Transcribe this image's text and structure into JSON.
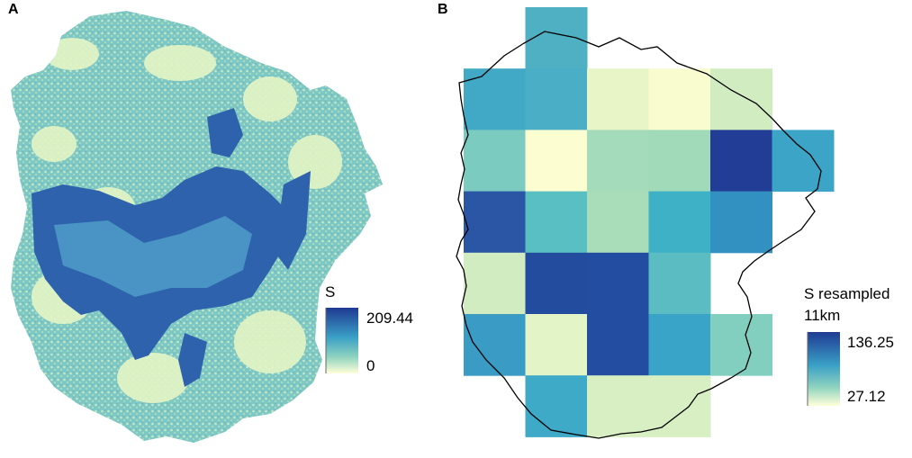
{
  "panels": {
    "a": {
      "label": "A",
      "legend_title": "S",
      "legend_max": "209.44",
      "legend_min": "0",
      "high_value_color": "#2c4fa8",
      "mid_value_color": "#5fb8c9",
      "low_value_color": "#f7fbd3"
    },
    "b": {
      "label": "B",
      "legend_title_line1": "S resampled",
      "legend_title_line2": "11km",
      "legend_max": "136.25",
      "legend_min": "27.12",
      "grid_cells": [
        {
          "row": 0,
          "col": 1,
          "color": "#4fb0c4"
        },
        {
          "row": 1,
          "col": 0,
          "color": "#41a9c5"
        },
        {
          "row": 1,
          "col": 1,
          "color": "#4aafc6"
        },
        {
          "row": 1,
          "col": 2,
          "color": "#e8f5c7"
        },
        {
          "row": 1,
          "col": 3,
          "color": "#f9fccf"
        },
        {
          "row": 1,
          "col": 4,
          "color": "#d2ecc1"
        },
        {
          "row": 2,
          "col": 0,
          "color": "#7ccbc0"
        },
        {
          "row": 2,
          "col": 1,
          "color": "#fdfdd2"
        },
        {
          "row": 2,
          "col": 2,
          "color": "#a3dbbb"
        },
        {
          "row": 2,
          "col": 3,
          "color": "#a0dab9"
        },
        {
          "row": 2,
          "col": 4,
          "color": "#223d95"
        },
        {
          "row": 2,
          "col": 5,
          "color": "#3ca4c7"
        },
        {
          "row": 3,
          "col": 0,
          "color": "#2b56a6"
        },
        {
          "row": 3,
          "col": 1,
          "color": "#5abfc3"
        },
        {
          "row": 3,
          "col": 2,
          "color": "#a9ddba"
        },
        {
          "row": 3,
          "col": 3,
          "color": "#3eb1c6"
        },
        {
          "row": 3,
          "col": 4,
          "color": "#3291c0"
        },
        {
          "row": 4,
          "col": 0,
          "color": "#d2ecc1"
        },
        {
          "row": 4,
          "col": 1,
          "color": "#234c9f"
        },
        {
          "row": 4,
          "col": 2,
          "color": "#234da1"
        },
        {
          "row": 4,
          "col": 3,
          "color": "#5bbdc2"
        },
        {
          "row": 5,
          "col": 0,
          "color": "#3a9bc5"
        },
        {
          "row": 5,
          "col": 1,
          "color": "#e3f4c6"
        },
        {
          "row": 5,
          "col": 2,
          "color": "#234da1"
        },
        {
          "row": 5,
          "col": 3,
          "color": "#3aa3c8"
        },
        {
          "row": 5,
          "col": 4,
          "color": "#82cfc0"
        },
        {
          "row": 6,
          "col": 1,
          "color": "#3eaac8"
        },
        {
          "row": 6,
          "col": 2,
          "color": "#d8efc3"
        },
        {
          "row": 6,
          "col": 3,
          "color": "#d8efc3"
        }
      ]
    }
  }
}
